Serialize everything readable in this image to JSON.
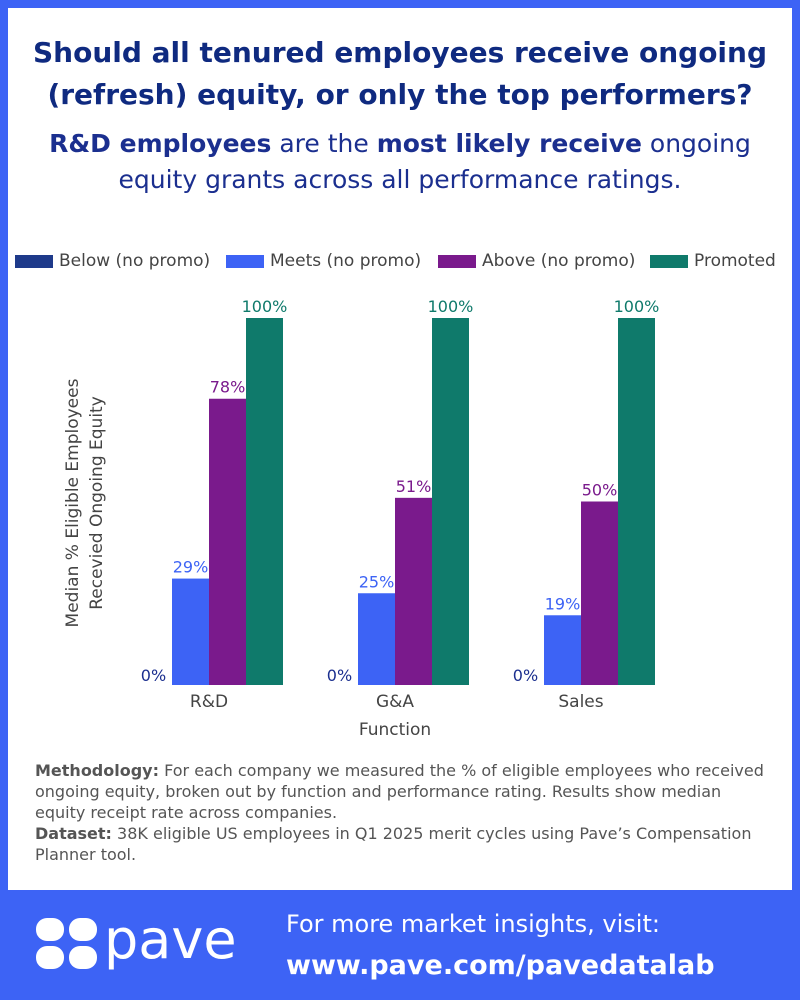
{
  "header": {
    "title_line1": "Should all tenured employees receive ongoing",
    "title_line2": "(refresh) equity, or only the top performers?",
    "subtitle_bold1": "R&D employees",
    "subtitle_text1": " are the ",
    "subtitle_bold2": "most likely receive",
    "subtitle_text2": " ongoing",
    "subtitle_line2": "equity grants across all performance ratings."
  },
  "colors": {
    "below": "#1e3a8a",
    "meets": "#3d63f5",
    "above": "#7a1a8c",
    "promoted": "#0f7a6b",
    "axis_text": "#1b2f8f",
    "background": "#3d63f5"
  },
  "chart_data": {
    "type": "bar",
    "categories": [
      "R&D",
      "G&A",
      "Sales"
    ],
    "xlabel": "Function",
    "ylabel_line1": "Median % Eligible Employees",
    "ylabel_line2": "Recevied Ongoing Equity",
    "ylim": [
      0,
      100
    ],
    "grid": false,
    "legend_position": "top",
    "series": [
      {
        "name": "Below (no promo)",
        "values": [
          0,
          0,
          0
        ],
        "labels": [
          "0%",
          "0%",
          "0%"
        ]
      },
      {
        "name": "Meets (no promo)",
        "values": [
          29,
          25,
          19
        ],
        "labels": [
          "29%",
          "25%",
          "19%"
        ]
      },
      {
        "name": "Above (no promo)",
        "values": [
          78,
          51,
          50
        ],
        "labels": [
          "78%",
          "51%",
          "50%"
        ]
      },
      {
        "name": "Promoted",
        "values": [
          100,
          100,
          100
        ],
        "labels": [
          "100%",
          "100%",
          "100%"
        ]
      }
    ]
  },
  "notes": {
    "methodology_label": "Methodology:",
    "methodology_text": " For each company we measured the % of eligible employees who received ongoing equity, broken out by function and performance rating. Results show median equity receipt rate across companies.",
    "dataset_label": "Dataset:",
    "dataset_text": " 38K eligible US employees in Q1 2025 merit cycles using Pave’s Compensation Planner tool."
  },
  "footer": {
    "brand": "pave",
    "cta_line1": "For more market insights, visit:",
    "cta_line2": "www.pave.com/pavedatalab"
  }
}
